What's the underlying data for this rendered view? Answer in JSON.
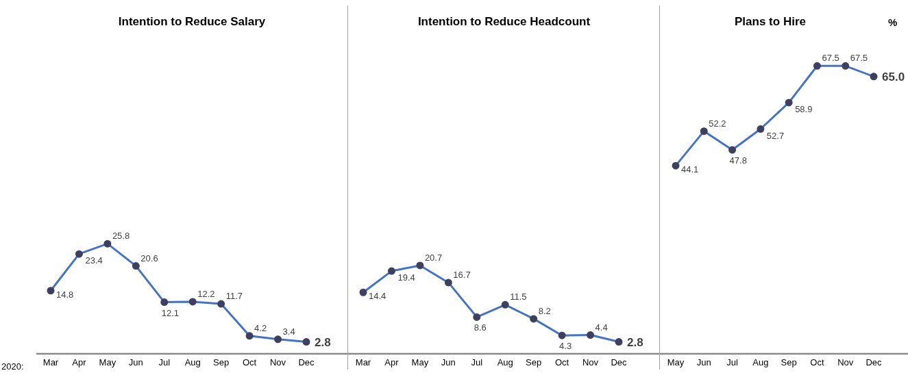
{
  "chart_data": [
    {
      "type": "line",
      "title": "Intention to Reduce Salary",
      "categories": [
        "Mar",
        "Apr",
        "May",
        "Jun",
        "Jul",
        "Aug",
        "Sep",
        "Oct",
        "Nov",
        "Dec"
      ],
      "values": [
        14.8,
        23.4,
        25.8,
        20.6,
        12.1,
        12.2,
        11.7,
        4.2,
        3.4,
        2.8
      ],
      "value_labels": [
        "14.8",
        "23.4",
        "25.8",
        "20.6",
        "12.1",
        "12.2",
        "11.7",
        "4.2",
        "3.4",
        "2.8"
      ],
      "color": "#4472c4",
      "marker": "circle",
      "tick_labels": "x",
      "annotations": [
        "2020:"
      ]
    },
    {
      "type": "line",
      "title": "Intention to Reduce Headcount",
      "categories": [
        "Mar",
        "Apr",
        "May",
        "Jun",
        "Jul",
        "Aug",
        "Sep",
        "Oct",
        "Nov",
        "Dec"
      ],
      "values": [
        14.4,
        19.4,
        20.7,
        16.7,
        8.6,
        11.5,
        8.2,
        4.3,
        4.4,
        2.8
      ],
      "value_labels": [
        "14.4",
        "19.4",
        "20.7",
        "16.7",
        "8.6",
        "11.5",
        "8.2",
        "4.3",
        "4.4",
        "2.8"
      ],
      "color": "#4472c4",
      "marker": "circle",
      "tick_labels": "x"
    },
    {
      "type": "line",
      "title": "Plans to Hire",
      "categories": [
        "May",
        "Jun",
        "Jul",
        "Aug",
        "Sep",
        "Oct",
        "Nov",
        "Dec"
      ],
      "values": [
        44.1,
        52.2,
        47.8,
        52.7,
        58.9,
        67.5,
        67.5,
        65.0
      ],
      "value_labels": [
        "44.1",
        "52.2",
        "47.8",
        "52.7",
        "58.9",
        "67.5",
        "67.5",
        "65.0"
      ],
      "color": "#4472c4",
      "marker": "circle",
      "tick_labels": "x",
      "annotations": [
        "%"
      ]
    }
  ]
}
